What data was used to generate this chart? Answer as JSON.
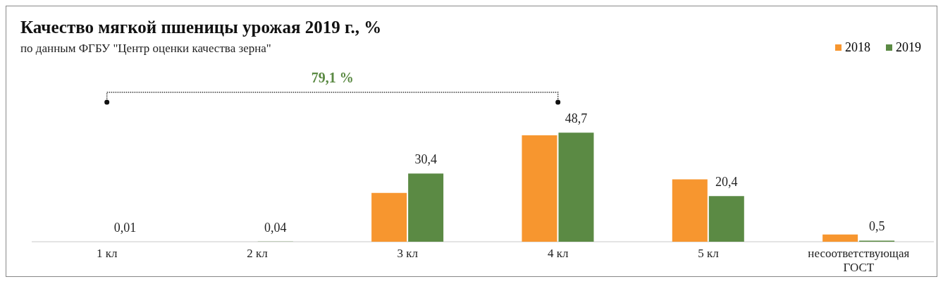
{
  "chart_data": {
    "type": "bar",
    "title": "Качество мягкой пшеницы урожая 2019 г., %",
    "subtitle": "по данным ФГБУ \"Центр оценки качества зерна\"",
    "categories": [
      "1 кл",
      "2 кл",
      "3 кл",
      "4 кл",
      "5 кл",
      "несоответствующая ГОСТ"
    ],
    "series": [
      {
        "name": "2018",
        "color": "#f7962f",
        "values": [
          0,
          0,
          21.8,
          47.5,
          27.8,
          3.2
        ]
      },
      {
        "name": "2019",
        "color": "#5b8a44",
        "values": [
          0.01,
          0.04,
          30.4,
          48.7,
          20.4,
          0.5
        ],
        "value_labels": [
          "0,01",
          "0,04",
          "30,4",
          "48,7",
          "20,4",
          "0,5"
        ]
      }
    ],
    "annotations": [
      "79,1 %"
    ],
    "legend": "top right",
    "tick_labels": "x"
  }
}
